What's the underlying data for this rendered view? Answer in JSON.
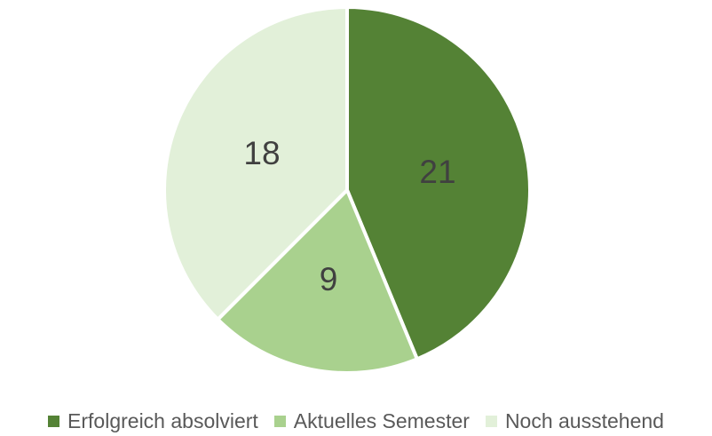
{
  "chart_data": {
    "type": "pie",
    "title": "",
    "categories": [
      "Erfolgreich absolviert",
      "Aktuelles Semester",
      "Noch ausstehend"
    ],
    "values": [
      21,
      9,
      18
    ],
    "colors": [
      "#548235",
      "#a9d18e",
      "#e2f0d9"
    ],
    "data_labels": [
      "21",
      "9",
      "18"
    ],
    "legend_position": "bottom",
    "start_angle": "12 o'clock",
    "direction": "clockwise"
  }
}
